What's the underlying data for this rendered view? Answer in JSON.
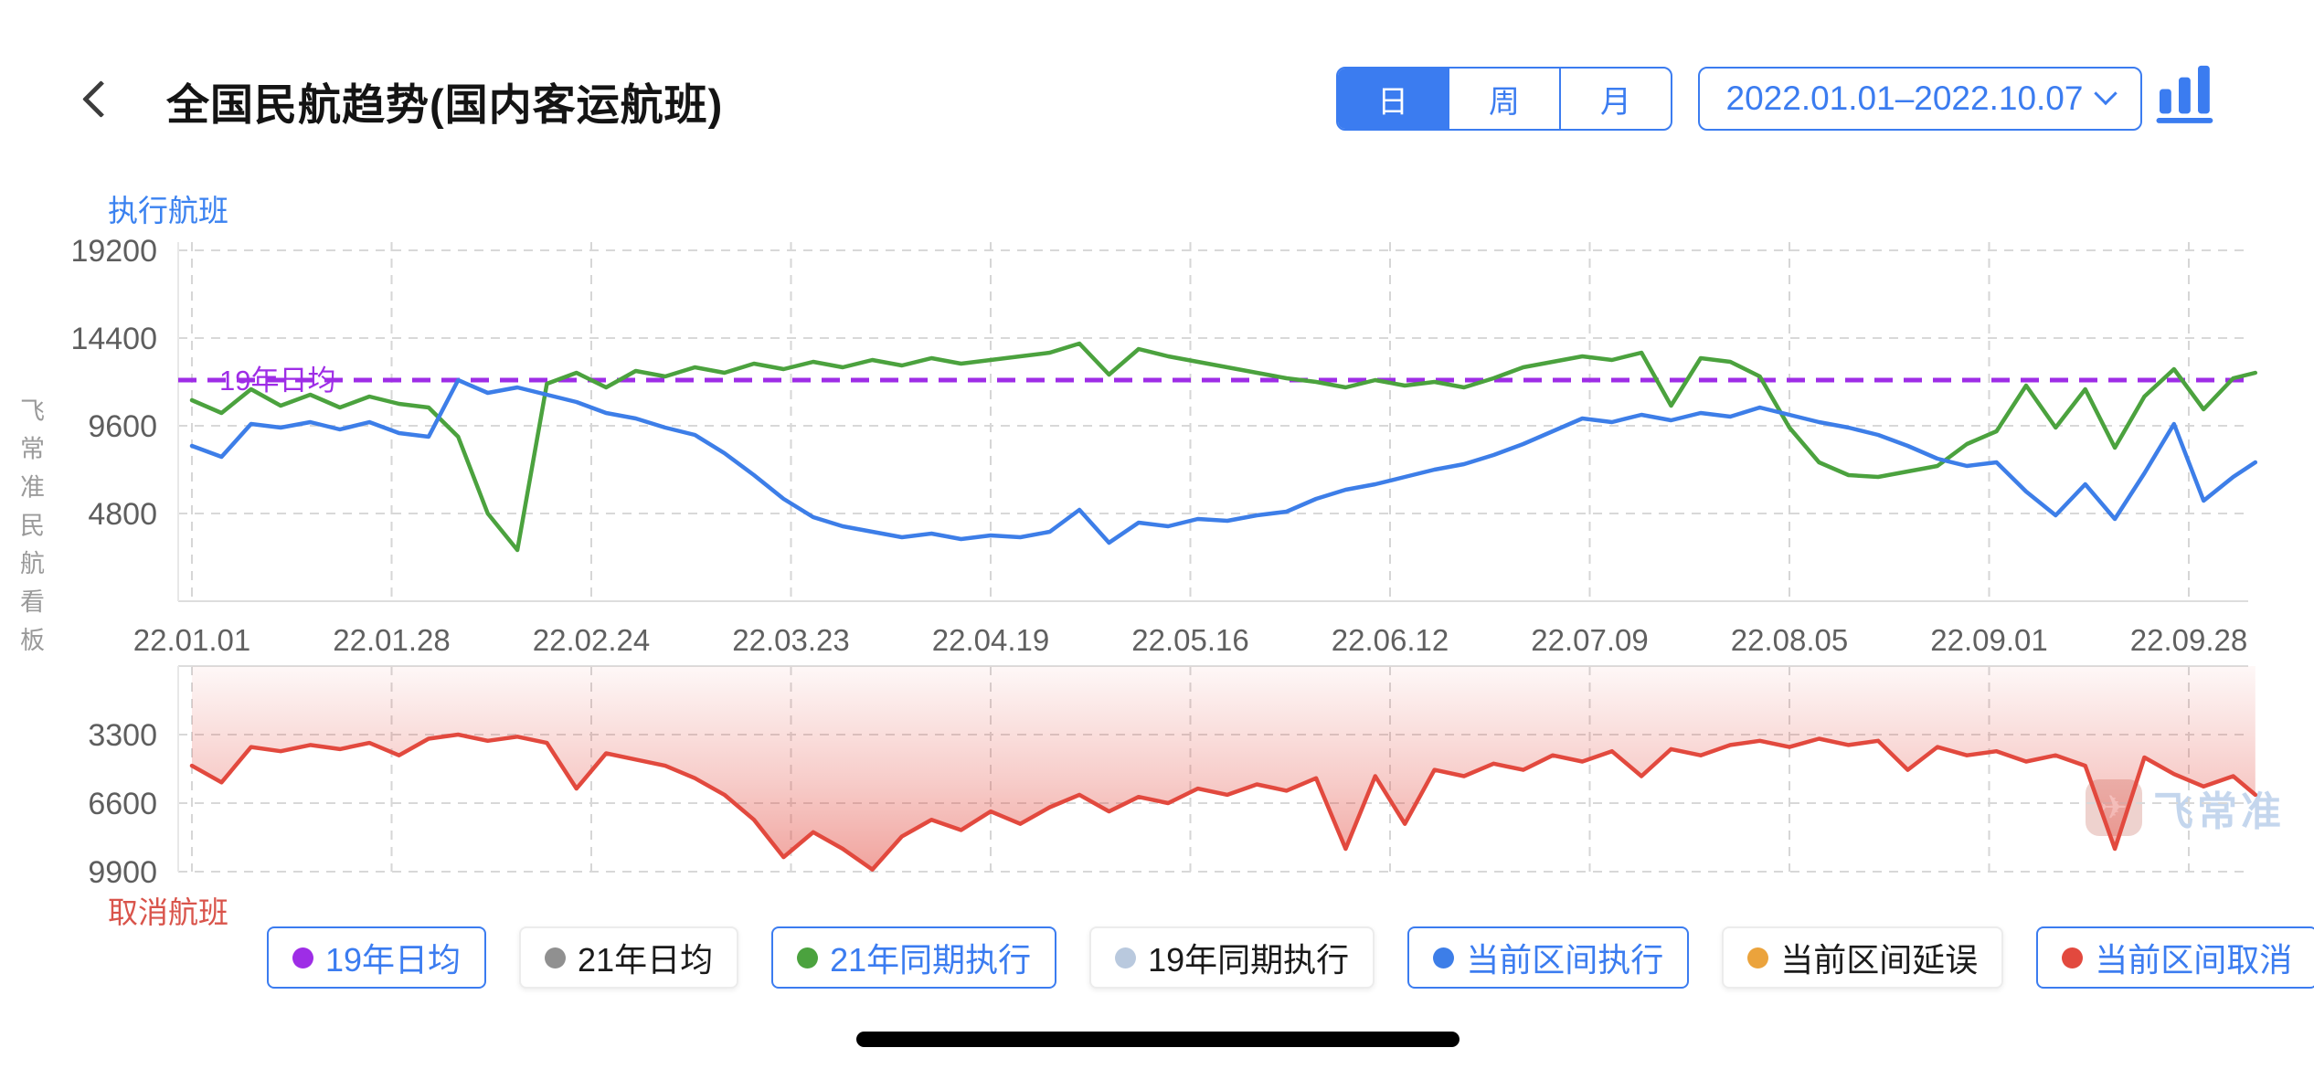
{
  "header": {
    "title": "全国民航趋势(国内客运航班)",
    "period_tabs": [
      {
        "label": "日",
        "active": true
      },
      {
        "label": "周",
        "active": false
      },
      {
        "label": "月",
        "active": false
      }
    ],
    "date_range": {
      "value": "2022.01.01–2022.10.07"
    }
  },
  "sidebar_brand": {
    "text": "飞常准民航看板"
  },
  "watermark": {
    "brand": "飞常准",
    "icon": "airplane-app-icon"
  },
  "colors": {
    "accent_blue": "#3b7cf0",
    "line_blue": "#3d7ee8",
    "line_green": "#4ba23e",
    "line_red": "#e2493e",
    "ref_purple": "#9e2de6",
    "grid": "#d6d6d6",
    "tick_text": "#5e5e5e"
  },
  "chart_data": [
    {
      "type": "line",
      "title": "执行航班",
      "ylabel": "执行航班",
      "y_ticks": [
        19200,
        14400,
        9600,
        4800
      ],
      "ylim": [
        0,
        20400
      ],
      "x_labels": [
        "22.01.01",
        "22.01.28",
        "22.02.24",
        "22.03.23",
        "22.04.19",
        "22.05.16",
        "22.06.12",
        "22.07.09",
        "22.08.05",
        "22.09.01",
        "22.09.28"
      ],
      "x_range": [
        "2022.01.01",
        "2022.10.07"
      ],
      "sample_interval_days": 4,
      "grid": true,
      "reference_line": {
        "name": "19年日均",
        "value": 12100,
        "color": "#9e2de6",
        "style": "dashed"
      },
      "series": [
        {
          "name": "21年同期执行",
          "color": "#4ba23e",
          "values": [
            11000,
            10300,
            11600,
            10700,
            11300,
            10600,
            11200,
            10800,
            10600,
            9000,
            4800,
            2800,
            11900,
            12500,
            11700,
            12600,
            12300,
            12800,
            12500,
            13000,
            12700,
            13100,
            12800,
            13200,
            12900,
            13300,
            13000,
            13200,
            13400,
            13600,
            14100,
            12400,
            13800,
            13400,
            13100,
            12800,
            12500,
            12200,
            12000,
            11700,
            12100,
            11800,
            12000,
            11700,
            12200,
            12800,
            13100,
            13400,
            13200,
            13600,
            10700,
            13300,
            13100,
            12300,
            9500,
            7600,
            6900,
            6800,
            7100,
            7400,
            8600,
            9300,
            11800,
            9500,
            11600,
            8400,
            11200,
            12700,
            10500,
            12200,
            12500
          ]
        },
        {
          "name": "当前区间执行",
          "color": "#3d7ee8",
          "values": [
            8500,
            7900,
            9700,
            9500,
            9800,
            9400,
            9800,
            9200,
            9000,
            12100,
            11400,
            11700,
            11300,
            10900,
            10300,
            10000,
            9500,
            9100,
            8100,
            6900,
            5600,
            4600,
            4100,
            3800,
            3500,
            3700,
            3400,
            3600,
            3500,
            3800,
            5000,
            3200,
            4300,
            4100,
            4500,
            4400,
            4700,
            4900,
            5600,
            6100,
            6400,
            6800,
            7200,
            7500,
            8000,
            8600,
            9300,
            10000,
            9800,
            10200,
            9900,
            10300,
            10100,
            10600,
            10200,
            9800,
            9500,
            9100,
            8500,
            7800,
            7400,
            7600,
            6000,
            4700,
            6400,
            4500,
            7000,
            9700,
            5500,
            6800,
            7600
          ]
        }
      ]
    },
    {
      "type": "area",
      "title": "取消航班",
      "ylabel": "取消航班",
      "inverted": true,
      "y_ticks": [
        3300,
        6600,
        9900
      ],
      "ylim": [
        0,
        10200
      ],
      "x_labels": [
        "22.01.01",
        "22.01.28",
        "22.02.24",
        "22.03.23",
        "22.04.19",
        "22.05.16",
        "22.06.12",
        "22.07.09",
        "22.08.05",
        "22.09.01",
        "22.09.28"
      ],
      "sample_interval_days": 4,
      "grid": true,
      "series": [
        {
          "name": "当前区间取消",
          "color": "#e2493e",
          "values": [
            4800,
            5600,
            3900,
            4100,
            3800,
            4000,
            3700,
            4300,
            3500,
            3300,
            3600,
            3400,
            3700,
            5900,
            4200,
            4500,
            4800,
            5400,
            6200,
            7400,
            9200,
            8000,
            8800,
            9800,
            8200,
            7400,
            7900,
            7000,
            7600,
            6800,
            6200,
            7000,
            6300,
            6600,
            5900,
            6200,
            5700,
            6000,
            5400,
            8800,
            5300,
            7600,
            5000,
            5300,
            4700,
            5000,
            4300,
            4600,
            4100,
            5300,
            4000,
            4300,
            3800,
            3600,
            3900,
            3500,
            3800,
            3600,
            5000,
            3900,
            4300,
            4100,
            4600,
            4300,
            4800,
            8800,
            4400,
            5200,
            5800,
            5300,
            6200
          ]
        }
      ]
    }
  ],
  "legend": {
    "items": [
      {
        "label": "19年日均",
        "dot_color": "#9e2de6",
        "active": true
      },
      {
        "label": "21年日均",
        "dot_color": "#909090",
        "active": false
      },
      {
        "label": "21年同期执行",
        "dot_color": "#4ba23e",
        "active": true
      },
      {
        "label": "19年同期执行",
        "dot_color": "#b9c9de",
        "active": false
      },
      {
        "label": "当前区间执行",
        "dot_color": "#3d7ee8",
        "active": true
      },
      {
        "label": "当前区间延误",
        "dot_color": "#eba33c",
        "active": false
      },
      {
        "label": "当前区间取消",
        "dot_color": "#e2493e",
        "active": true
      }
    ]
  }
}
